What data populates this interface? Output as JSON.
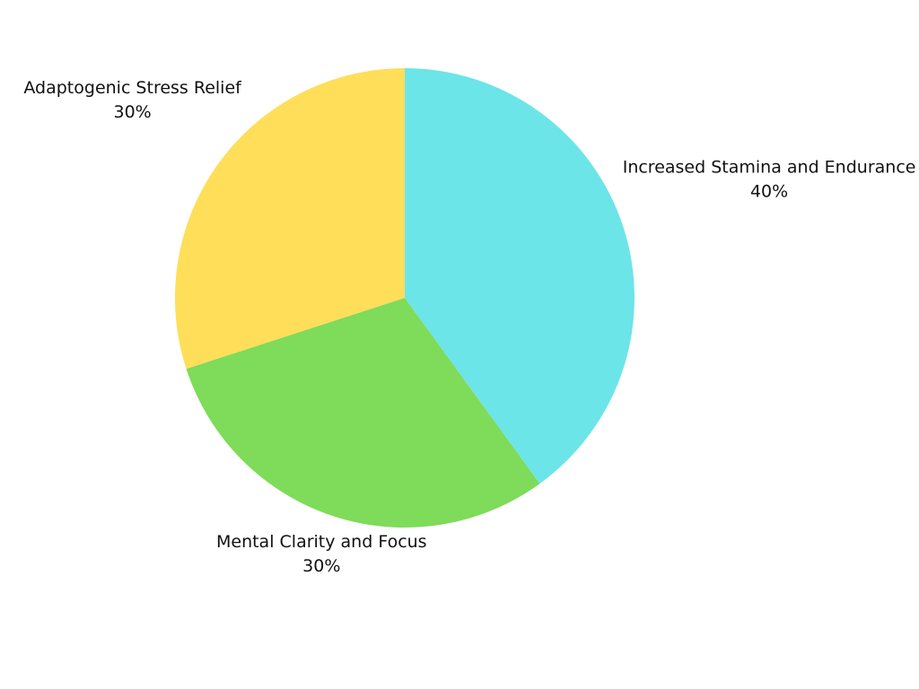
{
  "chart_data": {
    "type": "pie",
    "categories": [
      "Increased Stamina and Endurance",
      "Mental Clarity and Focus",
      "Adaptogenic Stress Relief"
    ],
    "values": [
      40,
      30,
      30
    ],
    "value_labels": [
      "40%",
      "30%",
      "30%"
    ],
    "colors": [
      "#6ce5e8",
      "#7fdb5a",
      "#ffde59"
    ]
  }
}
